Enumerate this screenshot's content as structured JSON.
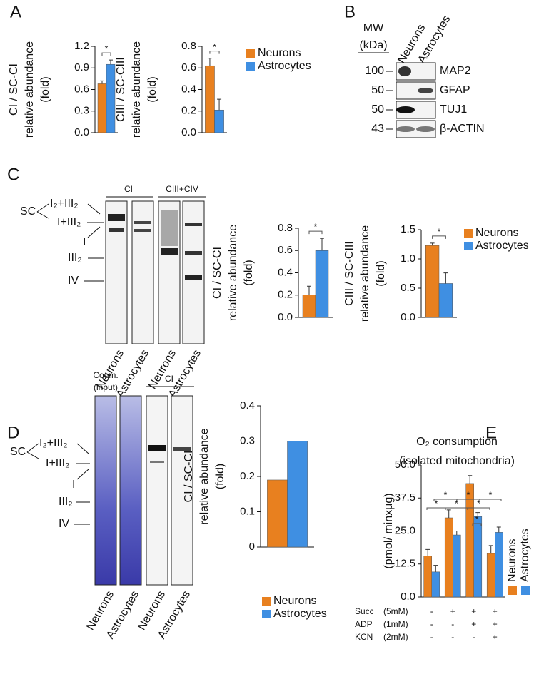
{
  "panel_labels": [
    "A",
    "B",
    "C",
    "D",
    "E"
  ],
  "blots": [
    {
      "mw_header": [
        "MW",
        "(kDa)"
      ],
      "lanes": [
        "Neurons",
        "Astrocytes"
      ],
      "rows": [
        {
          "mw": 100,
          "label": "MAP2"
        },
        {
          "mw": 50,
          "label": "GFAP"
        },
        {
          "mw": 50,
          "label": "TUJ1"
        },
        {
          "mw": 43,
          "label": "β-ACTIN"
        }
      ]
    },
    {
      "groups": [
        "CI",
        "CIII+CIV"
      ],
      "lanes": [
        "Neurons",
        "Astrocytes",
        "Neurons",
        "Astrocytes"
      ],
      "band_labels": [
        "SC",
        "I₂+III₂",
        "I+III₂",
        "I",
        "III₂",
        "IV"
      ]
    },
    {
      "groups": [
        [
          "Coom.",
          "(input)"
        ],
        [
          "CI"
        ]
      ],
      "lanes": [
        "Neurons",
        "Astrocytes",
        "Neurons",
        "Astrocytes"
      ],
      "band_labels": [
        "SC",
        "I₂+III₂",
        "I+III₂",
        "I",
        "III₂",
        "IV"
      ]
    }
  ],
  "chart_data": [
    {
      "type": "bar",
      "y_label": [
        "CI / SC-CI",
        "relative abundance",
        "(fold)"
      ],
      "categories": [
        null
      ],
      "series": [
        {
          "color": "#e8801f",
          "values": [
            0.68
          ],
          "errors": [
            0.04
          ]
        },
        {
          "color": "#3f8fe2",
          "values": [
            0.95
          ],
          "errors": [
            0.06
          ]
        }
      ],
      "ylim": [
        0,
        1.2
      ],
      "yticks": [
        {
          "value": 0,
          "label": "0.0"
        },
        0.3,
        0.6,
        0.9,
        1.2
      ],
      "sig_labels": [
        "*"
      ],
      "legend": false
    },
    {
      "type": "bar",
      "y_label": [
        "CIII / SC-CIII",
        "relative abundance",
        "(fold)"
      ],
      "categories": [
        null
      ],
      "series": [
        {
          "name": "Neurons",
          "color": "#e8801f",
          "values": [
            0.62
          ],
          "errors": [
            0.07
          ]
        },
        {
          "name": "Astrocytes",
          "color": "#3f8fe2",
          "values": [
            0.21
          ],
          "errors": [
            0.1
          ]
        }
      ],
      "ylim": [
        0,
        0.8
      ],
      "yticks": [
        {
          "value": 0,
          "label": "0.0"
        },
        0.2,
        0.4,
        0.6,
        0.8
      ],
      "sig_labels": [
        "*"
      ],
      "legend": "right"
    },
    {
      "type": "bar",
      "y_label": [
        "CI / SC-CI",
        "relative abundance",
        "(fold)"
      ],
      "categories": [
        null
      ],
      "series": [
        {
          "color": "#e8801f",
          "values": [
            0.2
          ],
          "errors": [
            0.08
          ]
        },
        {
          "color": "#3f8fe2",
          "values": [
            0.6
          ],
          "errors": [
            0.11
          ]
        }
      ],
      "ylim": [
        0,
        0.8
      ],
      "yticks": [
        {
          "value": 0,
          "label": "0.0"
        },
        0.2,
        0.4,
        0.6,
        0.8
      ],
      "sig_labels": [
        "*"
      ],
      "legend": false
    },
    {
      "type": "bar",
      "y_label": [
        "CIII / SC-CIII",
        "relative abundance",
        "(fold)"
      ],
      "categories": [
        null
      ],
      "series": [
        {
          "name": "Neurons",
          "color": "#e8801f",
          "values": [
            1.23
          ],
          "errors": [
            0.04
          ]
        },
        {
          "name": "Astrocytes",
          "color": "#3f8fe2",
          "values": [
            0.58
          ],
          "errors": [
            0.18
          ]
        }
      ],
      "ylim": [
        0,
        1.5
      ],
      "yticks": [
        {
          "value": 0,
          "label": "0.0"
        },
        0.5,
        {
          "value": 1,
          "label": "1.0"
        },
        1.5
      ],
      "sig_labels": [
        "*"
      ],
      "legend": "right"
    },
    {
      "type": "bar",
      "y_label": [
        "CI / SC-CI",
        "relative abundance",
        "(fold)"
      ],
      "categories": [
        null
      ],
      "series": [
        {
          "name": "Neurons",
          "color": "#e8801f",
          "values": [
            0.19
          ]
        },
        {
          "name": "Astrocytes",
          "color": "#3f8fe2",
          "values": [
            0.3
          ]
        }
      ],
      "ylim": [
        0,
        0.4
      ],
      "yticks": [
        0,
        0.1,
        0.2,
        0.3,
        0.4
      ],
      "legend": "bottom"
    },
    {
      "type": "bar",
      "title": [
        "O₂ consumption",
        "(isolated mitochondria)"
      ],
      "y_label": [
        "(pmol/ minxμg)"
      ],
      "categories": [
        null,
        null,
        null,
        null
      ],
      "series": [
        {
          "name": "Neurons",
          "color": "#e8801f",
          "values": [
            15.5,
            30,
            43,
            16.5
          ],
          "errors": [
            2.5,
            3,
            3,
            3
          ]
        },
        {
          "name": "Astrocytes",
          "color": "#3f8fe2",
          "values": [
            9.5,
            23.5,
            30.5,
            24.5
          ],
          "errors": [
            2.5,
            1.5,
            1.5,
            2
          ]
        }
      ],
      "ylim": [
        0,
        50
      ],
      "yticks": [
        {
          "value": 0,
          "label": "0.0"
        },
        12.5,
        {
          "value": 25,
          "label": "25.0"
        },
        37.5,
        {
          "value": 50,
          "label": "50.0"
        }
      ],
      "sig_labels": [
        "*",
        "*",
        "*",
        "*",
        "*",
        "*",
        "*"
      ],
      "legend": "rotated",
      "conditions": [
        {
          "label": "Succ",
          "dose": "(5mM)",
          "marks": [
            "-",
            "+",
            "+",
            "+"
          ]
        },
        {
          "label": "ADP",
          "dose": "(1mM)",
          "marks": [
            "-",
            "-",
            "+",
            "+"
          ]
        },
        {
          "label": "KCN",
          "dose": "(2mM)",
          "marks": [
            "-",
            "-",
            "-",
            "+"
          ]
        }
      ]
    }
  ]
}
